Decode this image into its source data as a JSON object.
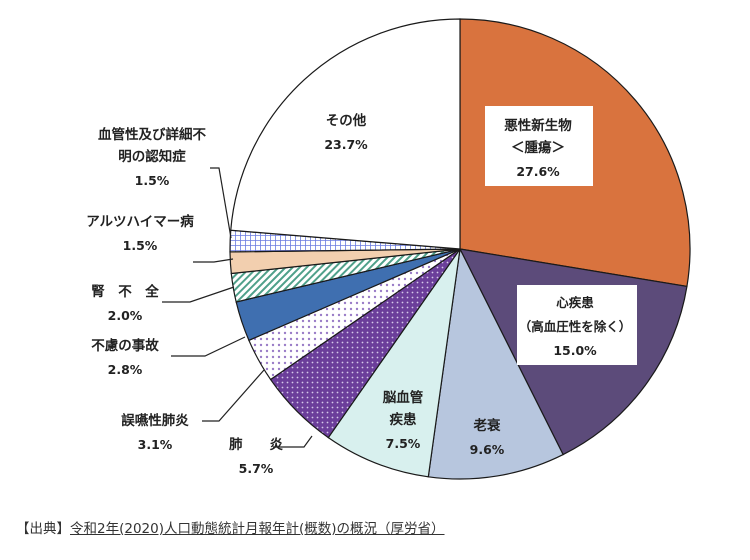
{
  "chart_data": {
    "type": "pie",
    "start": "12 o'clock",
    "direction": "clockwise",
    "slices": [
      {
        "label": "悪性新生物\n＜腫瘍＞",
        "value": 27.6,
        "value_label": "27.6%",
        "color": "#D9733E",
        "pattern": "solid",
        "label_box": true
      },
      {
        "label": "心疾患\n（高血圧性を除く）",
        "value": 15.0,
        "value_label": "15.0%",
        "color": "#5C4B7A",
        "pattern": "solid",
        "label_box": true
      },
      {
        "label": "老衰",
        "value": 9.6,
        "value_label": "9.6%",
        "color": "#B7C6DE",
        "pattern": "solid"
      },
      {
        "label": "脳血管\n疾患",
        "value": 7.5,
        "value_label": "7.5%",
        "color": "#D8F0EE",
        "pattern": "solid"
      },
      {
        "label": "肺　　炎",
        "value": 5.7,
        "value_label": "5.7%",
        "color": "#6B3E9A",
        "pattern": "dots"
      },
      {
        "label": "誤嚥性肺炎",
        "value": 3.1,
        "value_label": "3.1%",
        "color": "#A48BCB",
        "pattern": "sparse-dots"
      },
      {
        "label": "不慮の事故",
        "value": 2.8,
        "value_label": "2.8%",
        "color": "#3F6FB0",
        "pattern": "solid"
      },
      {
        "label": "腎　不　全",
        "value": 2.0,
        "value_label": "2.0%",
        "color": "#4FA08A",
        "pattern": "diagonal"
      },
      {
        "label": "アルツハイマー病",
        "value": 1.5,
        "value_label": "1.5%",
        "color": "#F2CFAF",
        "pattern": "solid"
      },
      {
        "label": "血管性及び詳細不\n明の認知症",
        "value": 1.5,
        "value_label": "1.5%",
        "color": "#6B7BE0",
        "pattern": "grid"
      },
      {
        "label": "その他",
        "value": 23.7,
        "value_label": "23.7%",
        "color": "#FFFFFF",
        "pattern": "solid"
      }
    ]
  },
  "source": {
    "prefix": "【出典】",
    "link_text": "令和2年(2020)人口動態統計月報年計(概数)の概況（厚労省）"
  }
}
